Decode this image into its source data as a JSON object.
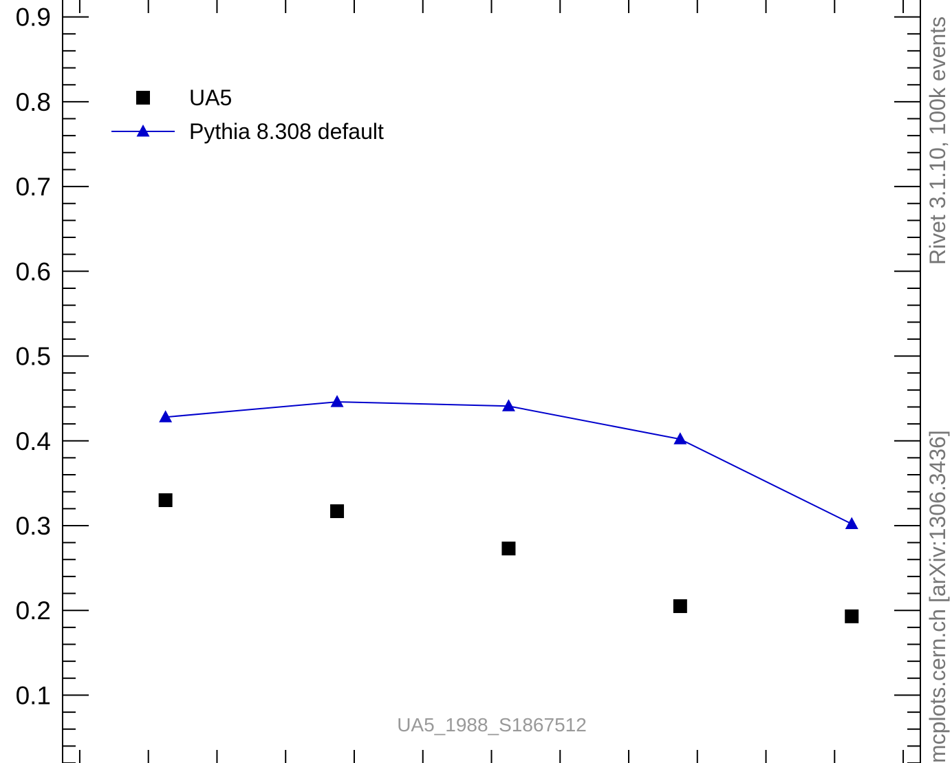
{
  "chart_data": {
    "type": "scatter",
    "title": "",
    "xlabel": "",
    "ylabel": "",
    "x": [
      1,
      2,
      3,
      4,
      5
    ],
    "xlim": [
      0.4,
      5.4
    ],
    "ylim": [
      0.02,
      0.92
    ],
    "y_ticks": [
      {
        "value": 0.1,
        "label": "0.1"
      },
      {
        "value": 0.2,
        "label": "0.2"
      },
      {
        "value": 0.3,
        "label": "0.3"
      },
      {
        "value": 0.4,
        "label": "0.4"
      },
      {
        "value": 0.5,
        "label": "0.5"
      },
      {
        "value": 0.6,
        "label": "0.6"
      },
      {
        "value": 0.7,
        "label": "0.7"
      },
      {
        "value": 0.8,
        "label": "0.8"
      },
      {
        "value": 0.9,
        "label": "0.9"
      }
    ],
    "grid": false,
    "legend_position": "top-left",
    "series": [
      {
        "name": "UA5",
        "kind": "markers",
        "marker": "square",
        "color": "#000000",
        "values": [
          0.33,
          0.317,
          0.273,
          0.205,
          0.193
        ]
      },
      {
        "name": "Pythia 8.308 default",
        "kind": "line-markers",
        "marker": "triangle",
        "color": "#0000cc",
        "values": [
          0.428,
          0.446,
          0.441,
          0.402,
          0.302
        ]
      }
    ]
  },
  "labels": {
    "analysis_id": "UA5_1988_S1867512",
    "side_top": "Rivet 3.1.10,  100k events",
    "side_bottom": "mcplots.cern.ch [arXiv:1306.3436]"
  }
}
